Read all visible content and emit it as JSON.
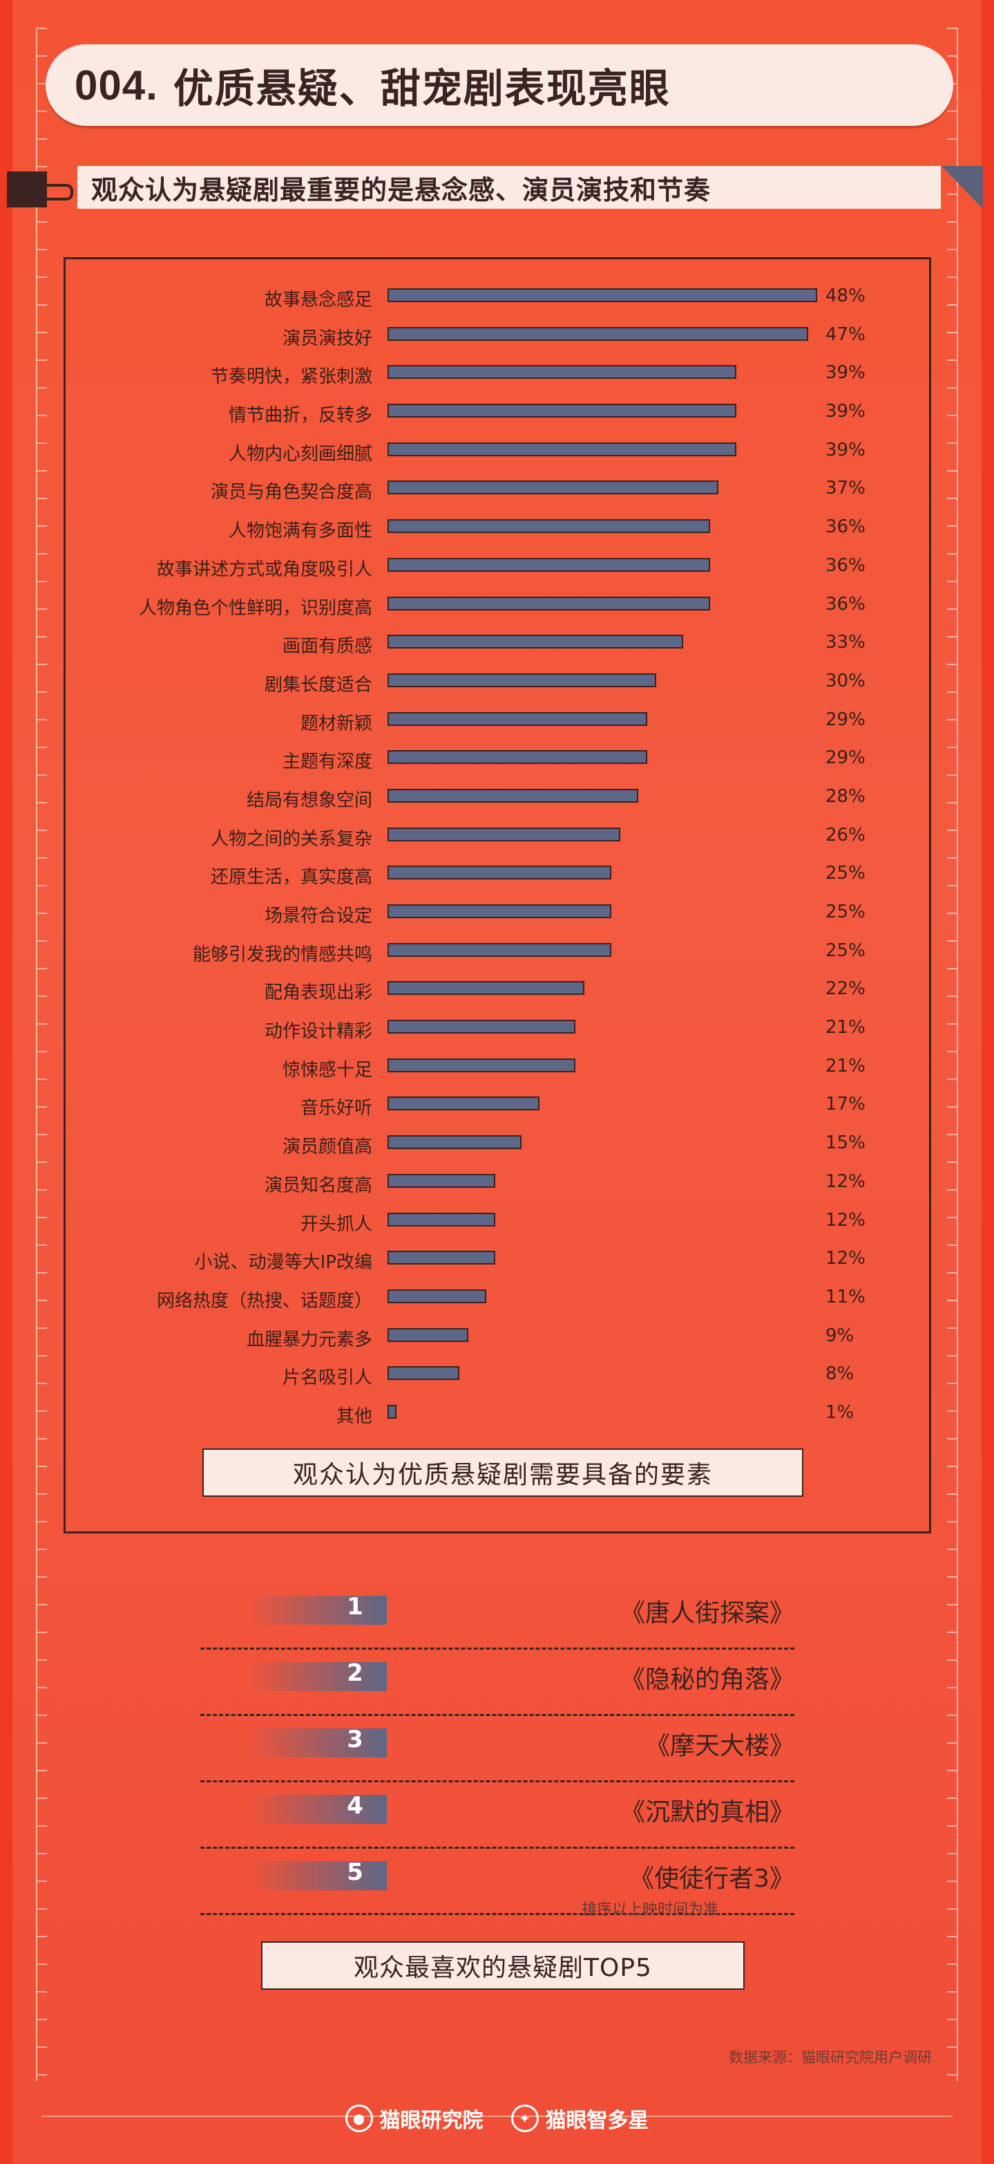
{
  "header": {
    "number": "004.",
    "title": "优质悬疑、甜宠剧表现亮眼"
  },
  "subtitle": {
    "text": "观众认为悬疑剧最重要的是悬念感、演员演技和节奏"
  },
  "chart_data": {
    "type": "bar",
    "orientation": "horizontal",
    "title": "观众认为优质悬疑剧需要具备的要素",
    "xlabel": "",
    "ylabel": "",
    "value_unit": "%",
    "grid": false,
    "legend": null,
    "categories": [
      "故事悬念感足",
      "演员演技好",
      "节奏明快，紧张刺激",
      "情节曲折，反转多",
      "人物内心刻画细腻",
      "演员与角色契合度高",
      "人物饱满有多面性",
      "故事讲述方式或角度吸引人",
      "人物角色个性鲜明，识别度高",
      "画面有质感",
      "剧集长度适合",
      "题材新颖",
      "主题有深度",
      "结局有想象空间",
      "人物之间的关系复杂",
      "还原生活，真实度高",
      "场景符合设定",
      "能够引发我的情感共鸣",
      "配角表现出彩",
      "动作设计精彩",
      "惊悚感十足",
      "音乐好听",
      "演员颜值高",
      "演员知名度高",
      "开头抓人",
      "小说、动漫等大IP改编",
      "网络热度（热搜、话题度）",
      "血腥暴力元素多",
      "片名吸引人",
      "其他"
    ],
    "values": [
      48,
      47,
      39,
      39,
      39,
      37,
      36,
      36,
      36,
      33,
      30,
      29,
      29,
      28,
      26,
      25,
      25,
      25,
      22,
      21,
      21,
      17,
      15,
      12,
      12,
      12,
      11,
      9,
      8,
      1
    ],
    "labels": [
      "48%",
      "47%",
      "39%",
      "39%",
      "39%",
      "37%",
      "36%",
      "36%",
      "36%",
      "33%",
      "30%",
      "29%",
      "29%",
      "28%",
      "26%",
      "25%",
      "25%",
      "25%",
      "22%",
      "21%",
      "21%",
      "17%",
      "15%",
      "12%",
      "12%",
      "12%",
      "11%",
      "9%",
      "8%",
      "1%"
    ],
    "bar_color": "#5d6787"
  },
  "chart_caption": "观众认为优质悬疑剧需要具备的要素",
  "top5": {
    "items": [
      {
        "rank": "1",
        "title": "《唐人街探案》"
      },
      {
        "rank": "2",
        "title": "《隐秘的角落》"
      },
      {
        "rank": "3",
        "title": "《摩天大楼》"
      },
      {
        "rank": "4",
        "title": "《沉默的真相》"
      },
      {
        "rank": "5",
        "title": "《使徒行者3》"
      }
    ],
    "note": "排序以上映时间为准",
    "caption": "观众最喜欢的悬疑剧TOP5"
  },
  "source": "数据来源：猫眼研究院用户调研",
  "footer": {
    "logos": [
      {
        "icon": "cat-face-icon",
        "label": "猫眼研究院"
      },
      {
        "icon": "star-diamond-icon",
        "label": "猫眼智多星"
      }
    ]
  },
  "colors": {
    "background": "#f35a3f",
    "panel_ink": "#3a2320",
    "bar": "#5d6787",
    "cream": "#fbe9e4"
  }
}
